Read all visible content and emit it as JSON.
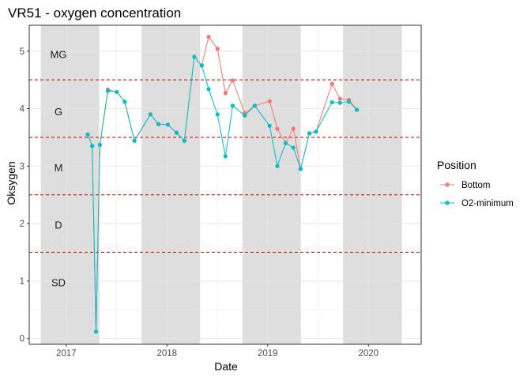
{
  "chart_data": {
    "type": "line",
    "title": "VR51 - oxygen concentration",
    "xlabel": "Date",
    "ylabel": "Oksygen",
    "ylim": [
      -0.1,
      5.45
    ],
    "xlim": [
      "2016-08-20",
      "2020-07-10"
    ],
    "x_ticks": [
      "2017",
      "2018",
      "2019",
      "2020"
    ],
    "x_tick_dates": [
      "2017-01-01",
      "2018-01-01",
      "2019-01-01",
      "2020-01-01"
    ],
    "y_ticks": [
      0,
      1,
      2,
      3,
      4,
      5
    ],
    "grid": true,
    "shaded_periods": [
      [
        "2016-10-01",
        "2017-05-01"
      ],
      [
        "2017-10-01",
        "2018-05-01"
      ],
      [
        "2018-10-01",
        "2019-05-01"
      ],
      [
        "2019-10-01",
        "2020-05-01"
      ]
    ],
    "thresholds": [
      1.5,
      2.5,
      3.5,
      4.5
    ],
    "class_labels": [
      {
        "label": "MG",
        "y": 4.95
      },
      {
        "label": "G",
        "y": 3.95
      },
      {
        "label": "M",
        "y": 2.98
      },
      {
        "label": "D",
        "y": 1.98
      },
      {
        "label": "SD",
        "y": 0.98
      }
    ],
    "legend": {
      "title": "Position",
      "placement": "right"
    },
    "series": [
      {
        "name": "Bottom",
        "color": "#F8766D",
        "points": [
          [
            "2017-03-20",
            3.55
          ],
          [
            "2017-04-05",
            3.35
          ],
          [
            "2017-04-19",
            0.12
          ],
          [
            "2017-05-03",
            3.37
          ],
          [
            "2017-06-01",
            4.33
          ],
          [
            "2017-07-03",
            4.29
          ],
          [
            "2017-08-01",
            4.12
          ],
          [
            "2017-09-05",
            3.44
          ],
          [
            "2017-11-02",
            3.9
          ],
          [
            "2017-12-01",
            3.73
          ],
          [
            "2018-01-04",
            3.72
          ],
          [
            "2018-02-05",
            3.58
          ],
          [
            "2018-03-05",
            3.44
          ],
          [
            "2018-04-10",
            4.9
          ],
          [
            "2018-05-07",
            4.75
          ],
          [
            "2018-06-01",
            5.25
          ],
          [
            "2018-07-03",
            5.04
          ],
          [
            "2018-08-01",
            4.27
          ],
          [
            "2018-08-27",
            4.49
          ],
          [
            "2018-10-10",
            3.92
          ],
          [
            "2018-11-15",
            4.05
          ],
          [
            "2019-01-08",
            4.13
          ],
          [
            "2019-02-05",
            3.65
          ],
          [
            "2019-03-07",
            3.4
          ],
          [
            "2019-04-04",
            3.65
          ],
          [
            "2019-04-30",
            2.95
          ],
          [
            "2019-06-01",
            3.57
          ],
          [
            "2019-06-25",
            3.6
          ],
          [
            "2019-08-22",
            4.43
          ],
          [
            "2019-09-20",
            4.17
          ],
          [
            "2019-10-22",
            4.15
          ],
          [
            "2019-11-20",
            3.98
          ]
        ]
      },
      {
        "name": "O2-minimum",
        "color": "#00BFC4",
        "points": [
          [
            "2017-03-20",
            3.55
          ],
          [
            "2017-04-05",
            3.35
          ],
          [
            "2017-04-19",
            0.12
          ],
          [
            "2017-05-03",
            3.37
          ],
          [
            "2017-06-01",
            4.31
          ],
          [
            "2017-07-03",
            4.29
          ],
          [
            "2017-08-01",
            4.12
          ],
          [
            "2017-09-05",
            3.44
          ],
          [
            "2017-11-02",
            3.9
          ],
          [
            "2017-12-01",
            3.73
          ],
          [
            "2018-01-04",
            3.72
          ],
          [
            "2018-02-05",
            3.58
          ],
          [
            "2018-03-05",
            3.44
          ],
          [
            "2018-04-10",
            4.9
          ],
          [
            "2018-05-07",
            4.75
          ],
          [
            "2018-06-01",
            4.34
          ],
          [
            "2018-07-03",
            3.9
          ],
          [
            "2018-08-01",
            3.17
          ],
          [
            "2018-08-27",
            4.05
          ],
          [
            "2018-10-10",
            3.88
          ],
          [
            "2018-11-15",
            4.05
          ],
          [
            "2019-01-08",
            3.7
          ],
          [
            "2019-02-05",
            3.0
          ],
          [
            "2019-03-07",
            3.4
          ],
          [
            "2019-04-04",
            3.32
          ],
          [
            "2019-04-30",
            2.95
          ],
          [
            "2019-06-01",
            3.57
          ],
          [
            "2019-06-25",
            3.6
          ],
          [
            "2019-08-22",
            4.11
          ],
          [
            "2019-09-20",
            4.1
          ],
          [
            "2019-10-22",
            4.12
          ],
          [
            "2019-11-20",
            3.98
          ]
        ]
      }
    ]
  }
}
